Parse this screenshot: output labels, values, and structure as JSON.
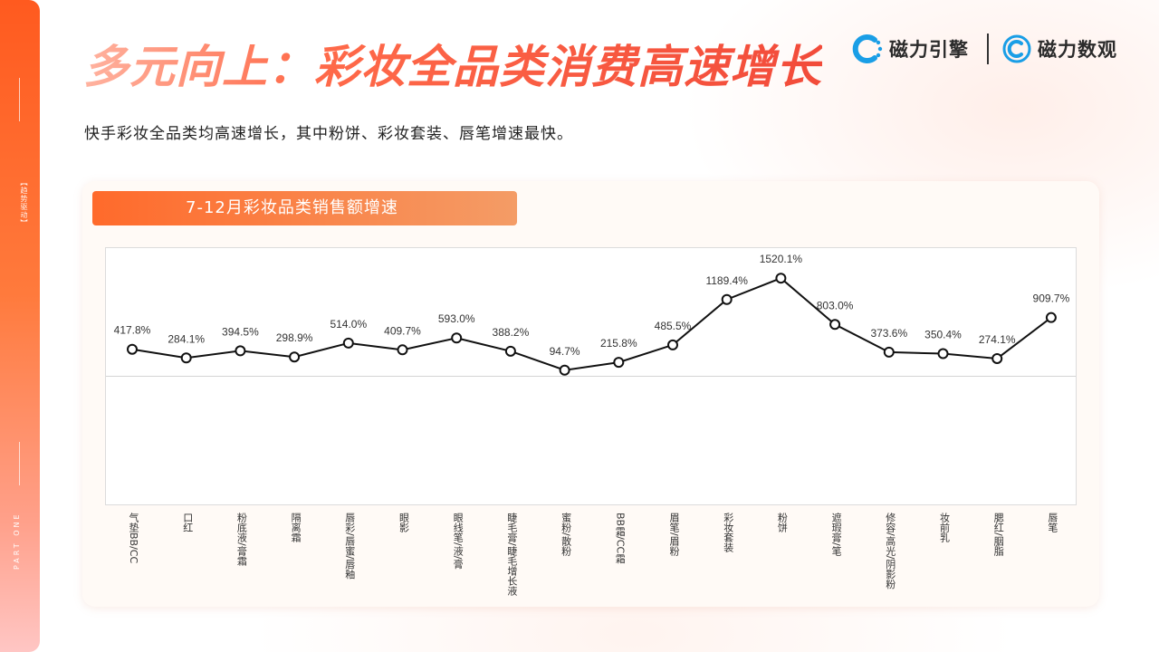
{
  "title": "多元向上：彩妆全品类消费高速增长",
  "subtitle": "快手彩妆全品类均高速增长，其中粉饼、彩妆套装、唇笔增速最快。",
  "logos": [
    {
      "name": "磁力引擎",
      "icon": "magnet-engine-icon"
    },
    {
      "name": "磁力数观",
      "icon": "magnet-insight-icon"
    }
  ],
  "sidebar": {
    "section_tag": "【趋势驱动】",
    "part_label": "PART ONE"
  },
  "colors": {
    "accent": "#ff6a2b",
    "line": "#111111",
    "marker_fill": "#ffffff"
  },
  "chart_data": {
    "type": "line",
    "title": "7-12月彩妆品类销售额增速",
    "categories": [
      "气垫BB/CC",
      "口红",
      "粉底液/膏霜",
      "隔离霜",
      "唇彩/唇蜜/唇釉",
      "眼影",
      "眼线笔/液/膏",
      "睫毛膏/睫毛增长液",
      "蜜粉/散粉",
      "BB霜/CC霜",
      "眉笔/眉粉",
      "彩妆套装",
      "粉饼",
      "遮瑕膏/笔",
      "修容/高光/阴影粉",
      "妆前乳",
      "腮红/胭脂",
      "唇笔"
    ],
    "values": [
      417.8,
      284.1,
      394.5,
      298.9,
      514.0,
      409.7,
      593.0,
      388.2,
      94.7,
      215.8,
      485.5,
      1189.4,
      1520.1,
      803.0,
      373.6,
      350.4,
      274.1,
      909.7
    ],
    "value_labels": [
      "417.8%",
      "284.1%",
      "394.5%",
      "298.9%",
      "514.0%",
      "409.7%",
      "593.0%",
      "388.2%",
      "94.7%",
      "215.8%",
      "485.5%",
      "1189.4%",
      "1520.1%",
      "803.0%",
      "373.6%",
      "350.4%",
      "274.1%",
      "909.7%"
    ],
    "ylim": [
      -2000,
      2000
    ],
    "grid": false,
    "baseline_at": 0,
    "xlabel": "",
    "ylabel": ""
  }
}
